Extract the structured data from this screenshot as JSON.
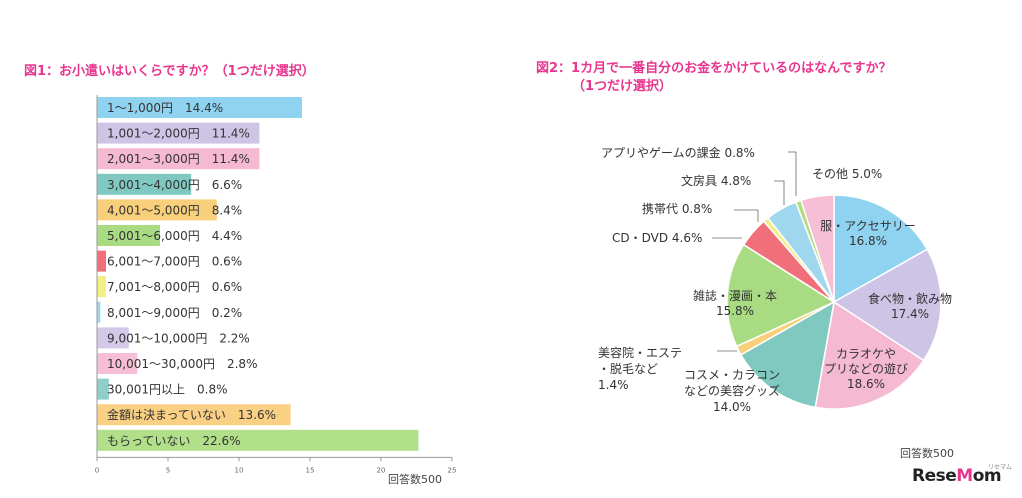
{
  "chart_data": [
    {
      "type": "bar",
      "orientation": "horizontal",
      "title": "図1：お小遣いはいくらですか？（1つだけ選択）",
      "categories": [
        "1～1,000円",
        "1,001～2,000円",
        "2,001～3,000円",
        "3,001～4,000円",
        "4,001～5,000円",
        "5,001～6,000円",
        "6,001～7,000円",
        "7,001～8,000円",
        "8,001～9,000円",
        "9,001～10,000円",
        "10,001～30,000円",
        "30,001円以上",
        "金額は決まっていない",
        "もらっていない"
      ],
      "values": [
        14.4,
        11.4,
        11.4,
        6.6,
        8.4,
        4.4,
        0.6,
        0.6,
        0.2,
        2.2,
        2.8,
        0.8,
        13.6,
        22.6
      ],
      "value_labels": [
        "14.4%",
        "11.4%",
        "11.4%",
        "6.6%",
        "8.4%",
        "4.4%",
        "0.6%",
        "0.6%",
        "0.2%",
        "2.2%",
        "2.8%",
        "0.8%",
        "13.6%",
        "22.6%"
      ],
      "colors": [
        "#8fd3f0",
        "#cdc4e6",
        "#f5b9d2",
        "#7fc9c1",
        "#f8cf7a",
        "#a9db83",
        "#f16f7b",
        "#f3ef84",
        "#9fd7ee",
        "#d3c8e8",
        "#f7bfd5",
        "#8fcfc7",
        "#fad084",
        "#b1df8a"
      ],
      "xticks": [
        0,
        5,
        10,
        15,
        20,
        25
      ],
      "xlim": [
        0,
        25
      ],
      "note": "回答数500"
    },
    {
      "type": "pie",
      "title_line1": "図2：1カ月で一番自分のお金をかけているのはなんですか？",
      "title_line2": "（1つだけ選択）",
      "slices": [
        {
          "label": "服・アクセサリー",
          "pct": "16.8%",
          "value": 16.8,
          "color": "#8fd3f0"
        },
        {
          "label": "食べ物・飲み物",
          "pct": "17.4%",
          "value": 17.4,
          "color": "#cdc4e6"
        },
        {
          "label": "カラオケやプリなどの遊び",
          "pct": "18.6%",
          "value": 18.6,
          "color": "#f5b9d2"
        },
        {
          "label": "コスメ・カラコンなどの美容グッズ",
          "pct": "14.0%",
          "value": 14.0,
          "color": "#7fc9c1"
        },
        {
          "label": "美容院・エステ・脱毛など",
          "pct": "1.4%",
          "value": 1.4,
          "color": "#f8cf7a"
        },
        {
          "label": "雑誌・漫画・本",
          "pct": "15.8%",
          "value": 15.8,
          "color": "#a9db83"
        },
        {
          "label": "CD・DVD",
          "pct": "4.6%",
          "value": 4.6,
          "color": "#f16f7b"
        },
        {
          "label": "携帯代",
          "pct": "0.8%",
          "value": 0.8,
          "color": "#f3ef84"
        },
        {
          "label": "文房具",
          "pct": "4.8%",
          "value": 4.8,
          "color": "#9fd7ee"
        },
        {
          "label": "アプリやゲームの課金",
          "pct": "0.8%",
          "value": 0.8,
          "color": "#b4dc7e"
        },
        {
          "label": "その他",
          "pct": "5.0%",
          "value": 5.0,
          "color": "#f7bfd5"
        }
      ],
      "label_lines": {
        "clothes": [
          "服・アクセサリー",
          "16.8%"
        ],
        "food": [
          "食べ物・飲み物",
          "17.4%"
        ],
        "karaoke": [
          "カラオケや",
          "プリなどの遊び",
          "18.6%"
        ],
        "cosme": [
          "コスメ・カラコン",
          "などの美容グッズ",
          "14.0%"
        ],
        "salon": [
          "美容院・エステ",
          "・脱毛など",
          "1.4%"
        ],
        "magazine": [
          "雑誌・漫画・本",
          "15.8%"
        ],
        "cd": [
          "CD・DVD 4.6%"
        ],
        "phone": [
          "携帯代 0.8%"
        ],
        "stationery": [
          "文房具 4.8%"
        ],
        "app": [
          "アプリやゲームの課金 0.8%"
        ],
        "other": [
          "その他 5.0%"
        ]
      },
      "note": "回答数500"
    }
  ],
  "logo": {
    "part1": "ResеMom",
    "text_a": "Rese",
    "text_o": "M",
    "text_b": "om",
    "sub": "リセマム"
  }
}
